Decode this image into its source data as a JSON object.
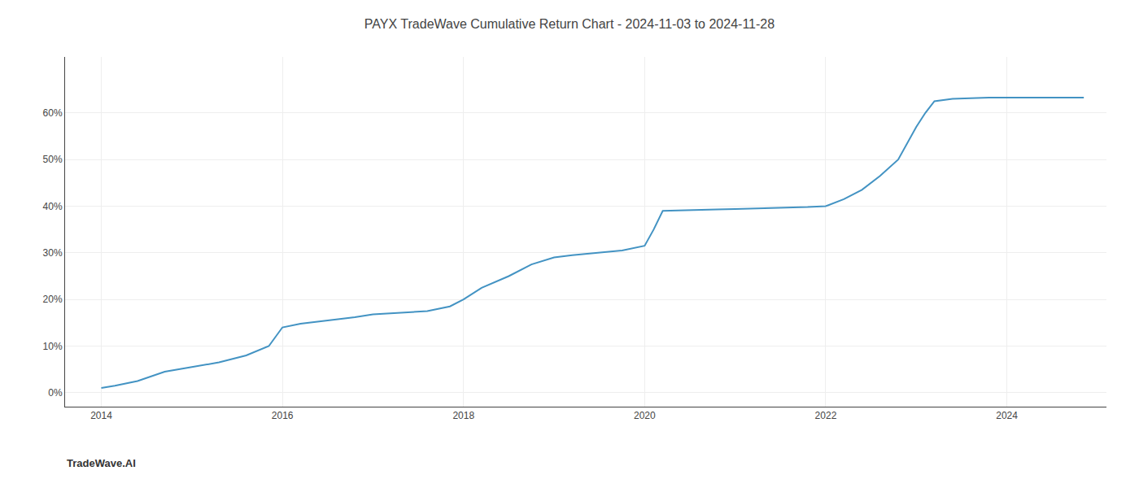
{
  "chart_data": {
    "type": "line",
    "title": "PAYX TradeWave Cumulative Return Chart - 2024-11-03 to 2024-11-28",
    "annotations": [
      "TradeWave.AI"
    ],
    "x": [
      2014.0,
      2014.15,
      2014.4,
      2014.7,
      2015.0,
      2015.3,
      2015.6,
      2015.85,
      2016.0,
      2016.2,
      2016.5,
      2016.8,
      2017.0,
      2017.15,
      2017.35,
      2017.6,
      2017.85,
      2018.0,
      2018.2,
      2018.5,
      2018.75,
      2019.0,
      2019.2,
      2019.5,
      2019.75,
      2020.0,
      2020.1,
      2020.2,
      2020.5,
      2020.8,
      2021.0,
      2021.2,
      2021.5,
      2021.8,
      2022.0,
      2022.2,
      2022.4,
      2022.6,
      2022.8,
      2023.0,
      2023.1,
      2023.2,
      2023.4,
      2023.6,
      2023.8,
      2024.0,
      2024.3,
      2024.85
    ],
    "values": [
      1.0,
      1.5,
      2.5,
      4.5,
      5.5,
      6.5,
      8.0,
      10.0,
      14.0,
      14.8,
      15.5,
      16.2,
      16.8,
      17.0,
      17.2,
      17.5,
      18.5,
      20.0,
      22.5,
      25.0,
      27.5,
      29.0,
      29.5,
      30.0,
      30.5,
      31.5,
      35.0,
      39.0,
      39.2,
      39.3,
      39.4,
      39.5,
      39.6,
      39.8,
      40.0,
      41.5,
      43.5,
      46.5,
      50.0,
      57.0,
      60.0,
      62.5,
      63.0,
      63.2,
      63.3,
      63.3,
      63.3,
      63.3
    ],
    "color": "#4393c3",
    "xlim": [
      2013.6,
      2025.1
    ],
    "ylim": [
      -3,
      72
    ],
    "xticks": [
      2014,
      2016,
      2018,
      2020,
      2022,
      2024
    ],
    "yticks": [
      {
        "value": 0,
        "label": "0%"
      },
      {
        "value": 10,
        "label": "10%"
      },
      {
        "value": 20,
        "label": "20%"
      },
      {
        "value": 30,
        "label": "30%"
      },
      {
        "value": 40,
        "label": "40%"
      },
      {
        "value": 50,
        "label": "50%"
      },
      {
        "value": 60,
        "label": "60%"
      }
    ],
    "grid": true
  }
}
